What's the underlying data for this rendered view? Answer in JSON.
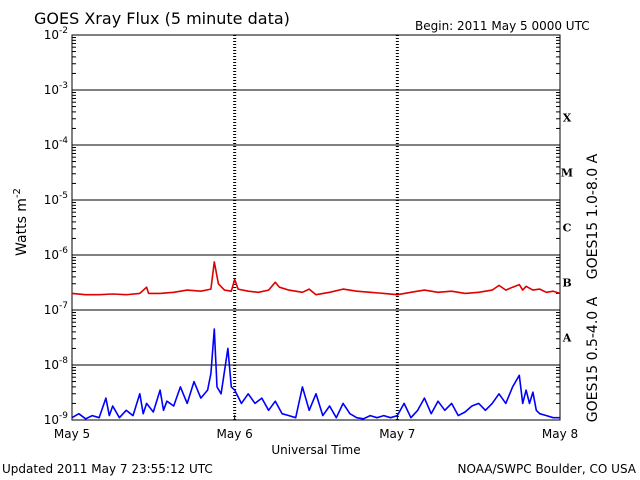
{
  "title": "GOES Xray Flux (5 minute data)",
  "begin_label": "Begin:  2011 May 5 0000 UTC",
  "updated_label": "Updated 2011 May  7 23:55:12 UTC",
  "credit_label": "NOAA/SWPC Boulder, CO USA",
  "colors": {
    "long_channel": "#e00000",
    "short_channel": "#0000ff",
    "axis": "#000000"
  },
  "chart_data": {
    "type": "line",
    "title": "GOES Xray Flux (5 minute data)",
    "xlabel": "Universal Time",
    "ylabel_base": "Watts m",
    "ylabel_sup": "-2",
    "yscale": "log",
    "ylim": [
      1e-09,
      0.01
    ],
    "xlim": [
      0,
      72
    ],
    "x_units": "hours since 2011 May 5 0000 UTC",
    "x_ticks": [
      {
        "x": 0,
        "label": "May 5"
      },
      {
        "x": 24,
        "label": "May 6"
      },
      {
        "x": 48,
        "label": "May 7"
      },
      {
        "x": 72,
        "label": "May 8"
      }
    ],
    "y_ticks": [
      {
        "exp": -2,
        "label": "10",
        "sup": "-2"
      },
      {
        "exp": -3,
        "label": "10",
        "sup": "-3"
      },
      {
        "exp": -4,
        "label": "10",
        "sup": "-4"
      },
      {
        "exp": -5,
        "label": "10",
        "sup": "-5"
      },
      {
        "exp": -6,
        "label": "10",
        "sup": "-6"
      },
      {
        "exp": -7,
        "label": "10",
        "sup": "-7"
      },
      {
        "exp": -8,
        "label": "10",
        "sup": "-8"
      },
      {
        "exp": -9,
        "label": "10",
        "sup": "-9"
      }
    ],
    "flare_classes": [
      {
        "label": "X",
        "exp": -3.5
      },
      {
        "label": "M",
        "exp": -4.5
      },
      {
        "label": "C",
        "exp": -5.5
      },
      {
        "label": "B",
        "exp": -6.5
      },
      {
        "label": "A",
        "exp": -7.5
      }
    ],
    "grid": "horizontal decade lines, dashed day dividers",
    "series": [
      {
        "name": "GOES15 1.0-8.0 A",
        "color": "#e00000",
        "points": [
          [
            0,
            2e-07
          ],
          [
            2,
            1.9e-07
          ],
          [
            4,
            1.9e-07
          ],
          [
            6,
            1.95e-07
          ],
          [
            8,
            1.9e-07
          ],
          [
            10,
            2e-07
          ],
          [
            11,
            2.6e-07
          ],
          [
            11.3,
            2e-07
          ],
          [
            13,
            2e-07
          ],
          [
            15,
            2.1e-07
          ],
          [
            17,
            2.3e-07
          ],
          [
            19,
            2.2e-07
          ],
          [
            20.5,
            2.4e-07
          ],
          [
            21,
            7.5e-07
          ],
          [
            21.6,
            3e-07
          ],
          [
            22.5,
            2.3e-07
          ],
          [
            23.5,
            2.2e-07
          ],
          [
            24,
            3.6e-07
          ],
          [
            24.5,
            2.4e-07
          ],
          [
            26,
            2.2e-07
          ],
          [
            27.5,
            2.1e-07
          ],
          [
            29,
            2.3e-07
          ],
          [
            30,
            3.2e-07
          ],
          [
            30.6,
            2.6e-07
          ],
          [
            32,
            2.3e-07
          ],
          [
            34,
            2.1e-07
          ],
          [
            35,
            2.4e-07
          ],
          [
            36,
            1.9e-07
          ],
          [
            38,
            2.1e-07
          ],
          [
            40,
            2.4e-07
          ],
          [
            42,
            2.2e-07
          ],
          [
            44,
            2.1e-07
          ],
          [
            46,
            2e-07
          ],
          [
            48,
            1.9e-07
          ],
          [
            50,
            2.1e-07
          ],
          [
            52,
            2.3e-07
          ],
          [
            54,
            2.1e-07
          ],
          [
            56,
            2.2e-07
          ],
          [
            58,
            2e-07
          ],
          [
            60,
            2.1e-07
          ],
          [
            62,
            2.3e-07
          ],
          [
            63,
            2.8e-07
          ],
          [
            64,
            2.3e-07
          ],
          [
            65,
            2.6e-07
          ],
          [
            66,
            2.9e-07
          ],
          [
            66.5,
            2.3e-07
          ],
          [
            67,
            2.7e-07
          ],
          [
            68,
            2.3e-07
          ],
          [
            69,
            2.4e-07
          ],
          [
            70,
            2.1e-07
          ],
          [
            71,
            2.2e-07
          ],
          [
            72,
            2e-07
          ]
        ]
      },
      {
        "name": "GOES15 0.5-4.0 A",
        "color": "#0000ff",
        "points": [
          [
            0,
            1.1e-09
          ],
          [
            1,
            1.3e-09
          ],
          [
            2,
            1.05e-09
          ],
          [
            3,
            1.2e-09
          ],
          [
            4,
            1.1e-09
          ],
          [
            5,
            2.5e-09
          ],
          [
            5.5,
            1.2e-09
          ],
          [
            6,
            1.8e-09
          ],
          [
            7,
            1.1e-09
          ],
          [
            8,
            1.5e-09
          ],
          [
            9,
            1.2e-09
          ],
          [
            10,
            3e-09
          ],
          [
            10.5,
            1.3e-09
          ],
          [
            11,
            2e-09
          ],
          [
            12,
            1.4e-09
          ],
          [
            13,
            3.5e-09
          ],
          [
            13.5,
            1.5e-09
          ],
          [
            14,
            2.2e-09
          ],
          [
            15,
            1.8e-09
          ],
          [
            16,
            4e-09
          ],
          [
            17,
            2e-09
          ],
          [
            18,
            5e-09
          ],
          [
            19,
            2.5e-09
          ],
          [
            20,
            3.5e-09
          ],
          [
            20.5,
            7e-09
          ],
          [
            21,
            4.5e-08
          ],
          [
            21.4,
            4e-09
          ],
          [
            22,
            3e-09
          ],
          [
            23,
            2e-08
          ],
          [
            23.5,
            4e-09
          ],
          [
            24,
            3.5e-09
          ],
          [
            25,
            2e-09
          ],
          [
            26,
            3e-09
          ],
          [
            27,
            2e-09
          ],
          [
            28,
            2.5e-09
          ],
          [
            29,
            1.5e-09
          ],
          [
            30,
            2.2e-09
          ],
          [
            31,
            1.3e-09
          ],
          [
            32,
            1.2e-09
          ],
          [
            33,
            1.1e-09
          ],
          [
            34,
            4e-09
          ],
          [
            35,
            1.5e-09
          ],
          [
            36,
            3e-09
          ],
          [
            37,
            1.2e-09
          ],
          [
            38,
            1.8e-09
          ],
          [
            39,
            1.1e-09
          ],
          [
            40,
            2e-09
          ],
          [
            41,
            1.3e-09
          ],
          [
            42,
            1.1e-09
          ],
          [
            43,
            1.05e-09
          ],
          [
            44,
            1.2e-09
          ],
          [
            45,
            1.1e-09
          ],
          [
            46,
            1.2e-09
          ],
          [
            47,
            1.1e-09
          ],
          [
            48,
            1.2e-09
          ],
          [
            49,
            2e-09
          ],
          [
            50,
            1.1e-09
          ],
          [
            51,
            1.5e-09
          ],
          [
            52,
            2.5e-09
          ],
          [
            53,
            1.3e-09
          ],
          [
            54,
            2.2e-09
          ],
          [
            55,
            1.5e-09
          ],
          [
            56,
            2e-09
          ],
          [
            57,
            1.2e-09
          ],
          [
            58,
            1.4e-09
          ],
          [
            59,
            1.8e-09
          ],
          [
            60,
            2e-09
          ],
          [
            61,
            1.5e-09
          ],
          [
            62,
            2e-09
          ],
          [
            63,
            3e-09
          ],
          [
            64,
            2e-09
          ],
          [
            65,
            4e-09
          ],
          [
            66,
            6.5e-09
          ],
          [
            66.5,
            2e-09
          ],
          [
            67,
            3.5e-09
          ],
          [
            67.5,
            2e-09
          ],
          [
            68,
            3.2e-09
          ],
          [
            68.5,
            1.5e-09
          ],
          [
            69,
            1.3e-09
          ],
          [
            70,
            1.2e-09
          ],
          [
            71,
            1.1e-09
          ],
          [
            72,
            1.1e-09
          ]
        ]
      }
    ]
  }
}
